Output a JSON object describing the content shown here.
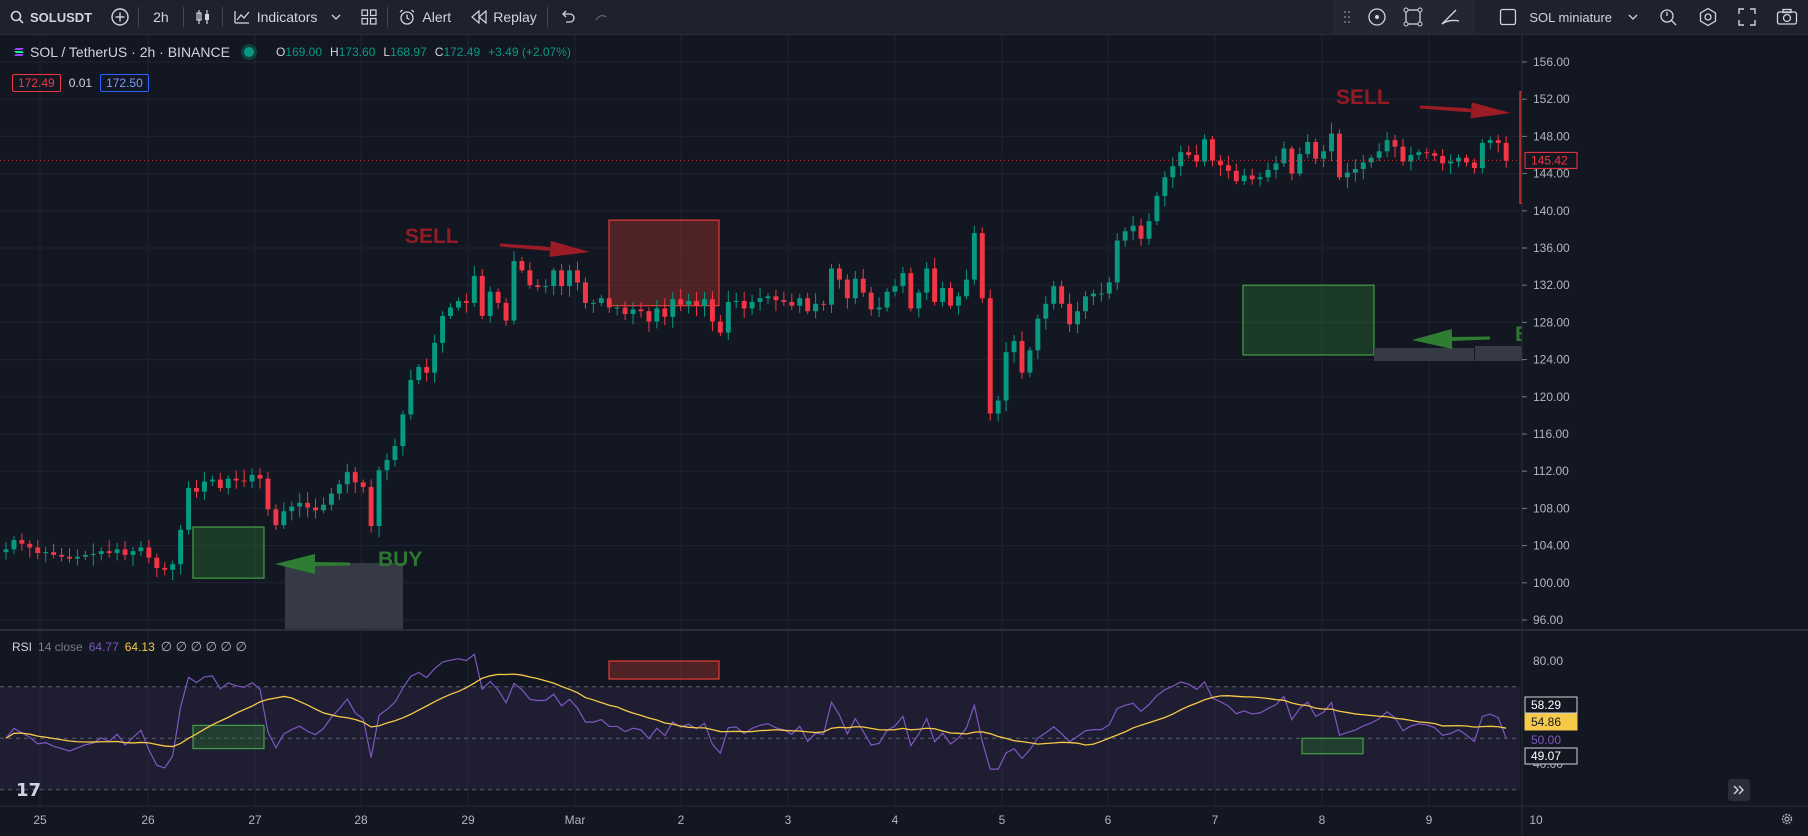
{
  "toolbar": {
    "symbol": "SOLUSDT",
    "interval": "2h",
    "indicators_label": "Indicators",
    "alert_label": "Alert",
    "replay_label": "Replay",
    "layout_name": "SOL miniature"
  },
  "legend": {
    "title": "SOL / TetherUS · 2h · BINANCE",
    "o_key": "O",
    "o_val": "169.00",
    "h_key": "H",
    "h_val": "173.60",
    "l_key": "L",
    "l_val": "168.97",
    "c_key": "C",
    "c_val": "172.49",
    "change": "+3.49 (+2.07%)",
    "bid": "172.49",
    "spread": "0.01",
    "ask": "172.50"
  },
  "rsi_legend": {
    "name": "RSI",
    "params": "14 close",
    "rsi_val": "64.77",
    "ma_val": "64.13",
    "empties": "∅ ∅ ∅ ∅ ∅ ∅"
  },
  "annotations": {
    "sell": "SELL",
    "buy": "BUY"
  },
  "price_axis": {
    "ticks": [
      "156.00",
      "152.00",
      "148.00",
      "144.00",
      "140.00",
      "136.00",
      "132.00",
      "128.00",
      "124.00",
      "120.00",
      "116.00",
      "112.00",
      "108.00",
      "104.00",
      "100.00",
      "96.00"
    ],
    "current_price": "145.42"
  },
  "rsi_axis": {
    "ticks": [
      "80.00",
      "40.00"
    ],
    "labels": [
      "58.29",
      "54.86",
      "50.00",
      "49.07"
    ]
  },
  "time_axis": {
    "ticks": [
      "25",
      "26",
      "27",
      "28",
      "29",
      "Mar",
      "2",
      "3",
      "4",
      "5",
      "6",
      "7",
      "8",
      "9",
      "10"
    ]
  },
  "logo": "17",
  "colors": {
    "up": "#089981",
    "down": "#f23645",
    "rsi": "#7e57c2",
    "rsi_ma": "#f7c948",
    "background": "#131722"
  },
  "chart_data": {
    "type": "candlestick",
    "symbol": "SOL / TetherUS",
    "interval": "2h",
    "ylim": [
      96,
      158
    ],
    "closes": [
      103.6,
      104.6,
      104.2,
      103.8,
      103.2,
      103.3,
      103.0,
      102.8,
      102.6,
      102.8,
      103.0,
      103.1,
      103.4,
      103.2,
      103.6,
      103.0,
      103.4,
      103.8,
      102.7,
      101.6,
      101.4,
      102.0,
      105.7,
      110.2,
      109.8,
      110.9,
      111.1,
      110.2,
      111.2,
      111.0,
      110.9,
      111.6,
      111.2,
      107.9,
      106.2,
      107.7,
      108.2,
      108.6,
      108.1,
      107.8,
      108.4,
      109.6,
      110.6,
      111.9,
      110.8,
      110.3,
      106.1,
      112.1,
      113.2,
      114.7,
      118.1,
      121.8,
      123.2,
      122.6,
      125.8,
      128.7,
      129.6,
      130.3,
      130.1,
      133.0,
      128.7,
      131.3,
      130.1,
      128.2,
      134.6,
      133.6,
      132.0,
      131.8,
      131.9,
      133.6,
      131.9,
      133.6,
      132.3,
      130.1,
      130.1,
      130.6,
      129.6,
      129.6,
      128.9,
      129.4,
      129.2,
      128.1,
      129.5,
      128.6,
      130.5,
      129.9,
      130.3,
      129.8,
      130.5,
      128.1,
      126.9,
      130.2,
      130.3,
      129.5,
      130.2,
      130.6,
      130.8,
      130.4,
      130.2,
      129.8,
      130.6,
      129.2,
      130.0,
      129.9,
      133.8,
      132.6,
      130.6,
      132.7,
      131.2,
      129.4,
      129.6,
      131.3,
      131.9,
      133.3,
      129.5,
      131.2,
      133.8,
      130.2,
      131.7,
      129.8,
      130.8,
      132.6,
      137.6,
      130.6,
      118.2,
      119.6,
      124.8,
      126.0,
      122.6,
      125.0,
      128.4,
      130.0,
      131.9,
      130.0,
      127.8,
      129.2,
      130.8,
      131.1,
      131.1,
      132.3,
      136.8,
      137.8,
      138.4,
      137.0,
      138.9,
      141.6,
      143.6,
      144.8,
      146.3,
      146.0,
      145.3,
      147.7,
      145.4,
      144.9,
      144.3,
      143.2,
      143.8,
      143.4,
      143.6,
      144.4,
      145.1,
      146.7,
      144.0,
      146.1,
      147.4,
      145.6,
      146.4,
      148.3,
      143.6,
      144.1,
      144.5,
      145.2,
      145.7,
      146.4,
      147.6,
      146.9,
      145.3,
      146.0,
      146.3,
      146.2,
      145.9,
      145.1,
      145.3,
      145.7,
      145.2,
      144.6,
      147.3,
      147.6,
      147.3,
      145.4
    ],
    "rsi_ylim": [
      36,
      86
    ],
    "rsi_levels": [
      70,
      50,
      30
    ],
    "annotations": [
      {
        "label": "BUY",
        "price_low": 100.5,
        "price_high": 106.0
      },
      {
        "label": "SELL",
        "price_low": 129.8,
        "price_high": 139.0
      },
      {
        "label": "BUY",
        "price_low": 124.5,
        "price_high": 132.0
      },
      {
        "label": "SELL",
        "price_low": 140.8,
        "price_high": 152.8
      }
    ]
  }
}
